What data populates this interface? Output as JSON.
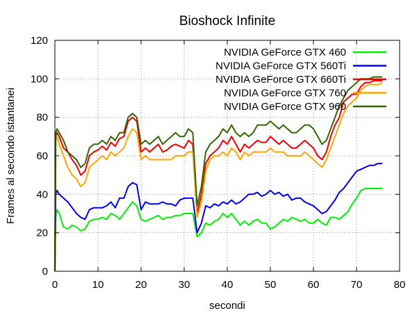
{
  "chart_data": {
    "type": "line",
    "title": "Bioshock Infinite",
    "xlabel": "secondi",
    "ylabel": "Frames al secondo istantanei",
    "xlim": [
      0,
      80
    ],
    "ylim": [
      0,
      120
    ],
    "x_ticks": [
      0,
      10,
      20,
      30,
      40,
      50,
      60,
      70,
      80
    ],
    "y_ticks": [
      0,
      20,
      40,
      60,
      80,
      100,
      120
    ],
    "grid": true,
    "legend_position": "top-right",
    "series": [
      {
        "name": "NVIDIA GeForce GTX 460",
        "color": "#00ee00",
        "x": [
          0,
          0.2,
          0.5,
          1,
          2,
          3,
          4,
          5,
          6,
          7,
          8,
          9,
          10,
          11,
          12,
          13,
          14,
          15,
          16,
          17,
          18,
          19,
          20,
          21,
          22,
          23,
          24,
          25,
          26,
          27,
          28,
          29,
          30,
          31,
          32,
          33,
          34,
          35,
          36,
          37,
          38,
          39,
          40,
          41,
          42,
          43,
          44,
          45,
          46,
          47,
          48,
          49,
          50,
          51,
          52,
          53,
          54,
          55,
          56,
          57,
          58,
          59,
          60,
          61,
          62,
          63,
          64,
          65,
          66,
          67,
          68,
          69,
          70,
          71,
          72,
          73,
          74,
          75,
          76
        ],
        "values": [
          0,
          28,
          32,
          30,
          23,
          22,
          24,
          23,
          21,
          22,
          26,
          27,
          27,
          28,
          27,
          30,
          29,
          27,
          30,
          33,
          36,
          34,
          27,
          26,
          27,
          28,
          29,
          27,
          28,
          28,
          29,
          29,
          30,
          30,
          30,
          18,
          20,
          25,
          24,
          26,
          27,
          30,
          28,
          30,
          27,
          24,
          26,
          24,
          26,
          27,
          25,
          25,
          22,
          23,
          25,
          27,
          26,
          28,
          27,
          26,
          27,
          25,
          25,
          27,
          25,
          24,
          28,
          28,
          27,
          29,
          31,
          35,
          38,
          42,
          43,
          43,
          43,
          43,
          43
        ]
      },
      {
        "name": "NVIDIA GeForce GTX 560Ti",
        "color": "#0000ee",
        "x": [
          0,
          0.2,
          0.5,
          1,
          2,
          3,
          4,
          5,
          6,
          7,
          8,
          9,
          10,
          11,
          12,
          13,
          14,
          15,
          16,
          17,
          18,
          19,
          20,
          21,
          22,
          23,
          24,
          25,
          26,
          27,
          28,
          29,
          30,
          31,
          32,
          33,
          34,
          35,
          36,
          37,
          38,
          39,
          40,
          41,
          42,
          43,
          44,
          45,
          46,
          47,
          48,
          49,
          50,
          51,
          52,
          53,
          54,
          55,
          56,
          57,
          58,
          59,
          60,
          61,
          62,
          63,
          64,
          65,
          66,
          67,
          68,
          69,
          70,
          71,
          72,
          73,
          74,
          75,
          76
        ],
        "values": [
          0,
          40,
          42,
          40,
          38,
          36,
          33,
          30,
          28,
          27,
          32,
          33,
          33,
          33,
          34,
          36,
          33,
          38,
          38,
          44,
          46,
          45,
          32,
          36,
          35,
          35,
          35,
          36,
          35,
          35,
          34,
          37,
          38,
          38,
          38,
          20,
          25,
          34,
          33,
          35,
          34,
          36,
          35,
          37,
          35,
          36,
          38,
          40,
          40,
          41,
          39,
          40,
          42,
          40,
          41,
          39,
          40,
          37,
          38,
          38,
          36,
          35,
          34,
          32,
          30,
          31,
          34,
          37,
          41,
          43,
          46,
          49,
          52,
          53,
          54,
          55,
          55,
          56,
          56
        ]
      },
      {
        "name": "NVIDIA GeForce GTX 660Ti",
        "color": "#ee0000",
        "x": [
          0,
          0.2,
          0.5,
          1,
          2,
          3,
          4,
          5,
          6,
          7,
          8,
          9,
          10,
          11,
          12,
          13,
          14,
          15,
          16,
          17,
          18,
          19,
          20,
          21,
          22,
          23,
          24,
          25,
          26,
          27,
          28,
          29,
          30,
          31,
          32,
          33,
          34,
          35,
          36,
          37,
          38,
          39,
          40,
          41,
          42,
          43,
          44,
          45,
          46,
          47,
          48,
          49,
          50,
          51,
          52,
          53,
          54,
          55,
          56,
          57,
          58,
          59,
          60,
          61,
          62,
          63,
          64,
          65,
          66,
          67,
          68,
          69,
          70,
          71,
          72,
          73,
          74,
          75,
          76
        ],
        "values": [
          0,
          70,
          72,
          70,
          64,
          62,
          58,
          55,
          50,
          52,
          60,
          62,
          63,
          65,
          63,
          67,
          65,
          69,
          70,
          78,
          80,
          78,
          62,
          64,
          62,
          64,
          66,
          62,
          63,
          65,
          66,
          65,
          64,
          68,
          66,
          30,
          40,
          56,
          60,
          62,
          64,
          68,
          66,
          70,
          66,
          62,
          66,
          64,
          66,
          68,
          67,
          67,
          70,
          68,
          66,
          68,
          66,
          64,
          64,
          66,
          68,
          66,
          64,
          60,
          58,
          62,
          70,
          76,
          80,
          88,
          90,
          92,
          92,
          96,
          98,
          98,
          99,
          99,
          99
        ]
      },
      {
        "name": "NVIDIA GeForce GTX 760",
        "color": "#ffa500",
        "x": [
          0,
          0.2,
          0.5,
          1,
          2,
          3,
          4,
          5,
          6,
          7,
          8,
          9,
          10,
          11,
          12,
          13,
          14,
          15,
          16,
          17,
          18,
          19,
          20,
          21,
          22,
          23,
          24,
          25,
          26,
          27,
          28,
          29,
          30,
          31,
          32,
          33,
          34,
          35,
          36,
          37,
          38,
          39,
          40,
          41,
          42,
          43,
          44,
          45,
          46,
          47,
          48,
          49,
          50,
          51,
          52,
          53,
          54,
          55,
          56,
          57,
          58,
          59,
          60,
          61,
          62,
          63,
          64,
          65,
          66,
          67,
          68,
          69,
          70,
          71,
          72,
          73,
          74,
          75,
          76
        ],
        "values": [
          0,
          68,
          70,
          66,
          60,
          54,
          50,
          48,
          44,
          46,
          54,
          56,
          58,
          60,
          58,
          62,
          60,
          62,
          64,
          70,
          74,
          72,
          58,
          60,
          58,
          58,
          58,
          58,
          58,
          58,
          60,
          60,
          60,
          62,
          62,
          28,
          36,
          52,
          58,
          60,
          60,
          62,
          60,
          64,
          62,
          58,
          62,
          60,
          62,
          62,
          62,
          62,
          64,
          62,
          62,
          62,
          60,
          60,
          60,
          60,
          62,
          60,
          58,
          56,
          54,
          58,
          64,
          70,
          76,
          82,
          86,
          88,
          90,
          94,
          96,
          97,
          97,
          97,
          98
        ]
      },
      {
        "name": "NVIDIA GeForce GTX 960",
        "color": "#336600",
        "x": [
          0,
          0.2,
          0.5,
          1,
          2,
          3,
          4,
          5,
          6,
          7,
          8,
          9,
          10,
          11,
          12,
          13,
          14,
          15,
          16,
          17,
          18,
          19,
          20,
          21,
          22,
          23,
          24,
          25,
          26,
          27,
          28,
          29,
          30,
          31,
          32,
          33,
          34,
          35,
          36,
          37,
          38,
          39,
          40,
          41,
          42,
          43,
          44,
          45,
          46,
          47,
          48,
          49,
          50,
          51,
          52,
          53,
          54,
          55,
          56,
          57,
          58,
          59,
          60,
          61,
          62,
          63,
          64,
          65,
          66,
          67,
          68,
          69,
          70,
          71,
          72,
          73,
          74,
          75,
          76
        ],
        "values": [
          0,
          72,
          74,
          72,
          68,
          62,
          60,
          58,
          54,
          56,
          64,
          66,
          66,
          68,
          66,
          70,
          68,
          72,
          72,
          80,
          82,
          80,
          66,
          68,
          66,
          68,
          70,
          66,
          68,
          70,
          72,
          70,
          70,
          74,
          72,
          34,
          44,
          62,
          66,
          68,
          70,
          74,
          72,
          76,
          72,
          70,
          72,
          70,
          72,
          76,
          76,
          76,
          78,
          76,
          74,
          76,
          74,
          72,
          72,
          74,
          76,
          76,
          74,
          70,
          66,
          68,
          74,
          80,
          86,
          90,
          94,
          96,
          98,
          100,
          100,
          100,
          101,
          101,
          101
        ]
      }
    ]
  }
}
